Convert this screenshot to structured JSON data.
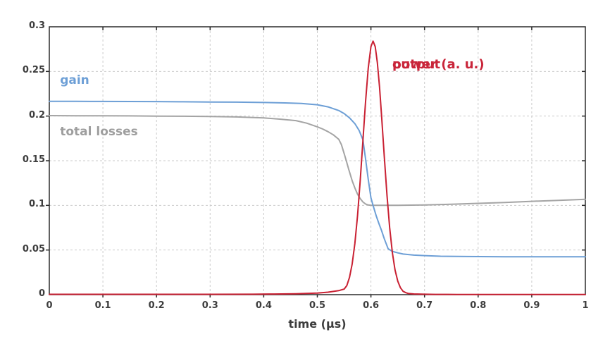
{
  "figure": {
    "background": "#ffffff",
    "axis_color": "#2b2b2b",
    "grid_color": "#cbcbcb",
    "tick_label_color": "#3d3d3d"
  },
  "chart_data": {
    "type": "line",
    "title": "",
    "xlabel": "time (µs)",
    "ylabel": "",
    "xlim": [
      0,
      1
    ],
    "ylim": [
      0,
      0.3
    ],
    "grid": {
      "style": "dashed",
      "color": "#cbcbcb"
    },
    "legend_position": "inline-annotations",
    "x_ticks": [
      0,
      0.1,
      0.2,
      0.3,
      0.4,
      0.5,
      0.6,
      0.7,
      0.8,
      0.9,
      1
    ],
    "x_tick_labels": [
      "0",
      "0.1",
      "0.2",
      "0.3",
      "0.4",
      "0.5",
      "0.6",
      "0.7",
      "0.8",
      "0.9",
      "1"
    ],
    "y_ticks": [
      0,
      0.05,
      0.1,
      0.15,
      0.2,
      0.25,
      0.3
    ],
    "y_tick_labels": [
      "0",
      "0.05",
      "0.1",
      "0.15",
      "0.2",
      "0.25",
      "0.3"
    ],
    "series": [
      {
        "id": "total-losses",
        "name": "total losses",
        "color": "#a4a4a4",
        "label": {
          "lines": [
            "total losses"
          ],
          "x": 0.02,
          "y": 0.1911,
          "color": "#9e9e9e",
          "size": 17,
          "line_height": 1.3
        },
        "points": [
          [
            0,
            0.2005
          ],
          [
            0.05,
            0.2004
          ],
          [
            0.1,
            0.2003
          ],
          [
            0.15,
            0.2002
          ],
          [
            0.2,
            0.2
          ],
          [
            0.25,
            0.1998
          ],
          [
            0.3,
            0.1995
          ],
          [
            0.35,
            0.199
          ],
          [
            0.4,
            0.1979
          ],
          [
            0.43,
            0.1966
          ],
          [
            0.46,
            0.1949
          ],
          [
            0.48,
            0.1921
          ],
          [
            0.5,
            0.188
          ],
          [
            0.51,
            0.1855
          ],
          [
            0.52,
            0.1825
          ],
          [
            0.53,
            0.179
          ],
          [
            0.54,
            0.174
          ],
          [
            0.545,
            0.168
          ],
          [
            0.55,
            0.158
          ],
          [
            0.554,
            0.15
          ],
          [
            0.5585,
            0.1405
          ],
          [
            0.565,
            0.1275
          ],
          [
            0.57,
            0.1195
          ],
          [
            0.575,
            0.1125
          ],
          [
            0.58,
            0.1075
          ],
          [
            0.585,
            0.1038
          ],
          [
            0.59,
            0.1015
          ],
          [
            0.595,
            0.1004
          ],
          [
            0.6,
            0.1
          ],
          [
            0.62,
            0.1
          ],
          [
            0.65,
            0.1
          ],
          [
            0.7,
            0.1005
          ],
          [
            0.75,
            0.1013
          ],
          [
            0.8,
            0.1022
          ],
          [
            0.85,
            0.1033
          ],
          [
            0.9,
            0.1045
          ],
          [
            0.95,
            0.1056
          ],
          [
            1,
            0.1067
          ]
        ]
      },
      {
        "id": "gain",
        "name": "gain",
        "color": "#6d9fd6",
        "label": {
          "lines": [
            "gain"
          ],
          "x": 0.02,
          "y": 0.2487,
          "color": "#6d9fd6",
          "size": 17,
          "line_height": 1.3
        },
        "points": [
          [
            0,
            0.2165
          ],
          [
            0.05,
            0.2165
          ],
          [
            0.1,
            0.2164
          ],
          [
            0.15,
            0.2163
          ],
          [
            0.2,
            0.2162
          ],
          [
            0.25,
            0.216
          ],
          [
            0.3,
            0.2158
          ],
          [
            0.35,
            0.2156
          ],
          [
            0.4,
            0.2152
          ],
          [
            0.44,
            0.2147
          ],
          [
            0.47,
            0.2141
          ],
          [
            0.5,
            0.2127
          ],
          [
            0.52,
            0.2103
          ],
          [
            0.54,
            0.2062
          ],
          [
            0.55,
            0.2028
          ],
          [
            0.56,
            0.198
          ],
          [
            0.57,
            0.1915
          ],
          [
            0.578,
            0.1838
          ],
          [
            0.585,
            0.1735
          ],
          [
            0.59,
            0.152
          ],
          [
            0.595,
            0.129
          ],
          [
            0.6,
            0.1085
          ],
          [
            0.604,
            0.1
          ],
          [
            0.61,
            0.088
          ],
          [
            0.615,
            0.0795
          ],
          [
            0.62,
            0.0715
          ],
          [
            0.625,
            0.0625
          ],
          [
            0.632,
            0.0515
          ],
          [
            0.64,
            0.0485
          ],
          [
            0.65,
            0.0468
          ],
          [
            0.66,
            0.0455
          ],
          [
            0.68,
            0.0443
          ],
          [
            0.7,
            0.0437
          ],
          [
            0.73,
            0.043
          ],
          [
            0.78,
            0.0427
          ],
          [
            0.85,
            0.0425
          ],
          [
            0.92,
            0.0425
          ],
          [
            1,
            0.0425
          ]
        ]
      },
      {
        "id": "output-power",
        "name": "output power (a. u.)",
        "color": "#c92133",
        "label": {
          "lines": [
            "output",
            "power (a. u.)"
          ],
          "x": 0.64,
          "y": 0.27,
          "color": "#c9253a",
          "size": 18,
          "line_height": 1.78
        },
        "points": [
          [
            0,
            0.0004
          ],
          [
            0.1,
            0.0004
          ],
          [
            0.2,
            0.0004
          ],
          [
            0.3,
            0.0004
          ],
          [
            0.38,
            0.0005
          ],
          [
            0.42,
            0.0007
          ],
          [
            0.46,
            0.001
          ],
          [
            0.5,
            0.0018
          ],
          [
            0.52,
            0.0028
          ],
          [
            0.54,
            0.0045
          ],
          [
            0.55,
            0.0062
          ],
          [
            0.555,
            0.0102
          ],
          [
            0.56,
            0.0194
          ],
          [
            0.565,
            0.0345
          ],
          [
            0.57,
            0.0573
          ],
          [
            0.575,
            0.0886
          ],
          [
            0.58,
            0.1279
          ],
          [
            0.585,
            0.1722
          ],
          [
            0.59,
            0.2164
          ],
          [
            0.595,
            0.2538
          ],
          [
            0.6,
            0.2778
          ],
          [
            0.604,
            0.284
          ],
          [
            0.608,
            0.2778
          ],
          [
            0.612,
            0.2599
          ],
          [
            0.616,
            0.2327
          ],
          [
            0.62,
            0.1992
          ],
          [
            0.625,
            0.1542
          ],
          [
            0.63,
            0.1114
          ],
          [
            0.635,
            0.075
          ],
          [
            0.64,
            0.0472
          ],
          [
            0.645,
            0.0277
          ],
          [
            0.65,
            0.0151
          ],
          [
            0.655,
            0.0077
          ],
          [
            0.66,
            0.0037
          ],
          [
            0.665,
            0.0022
          ],
          [
            0.67,
            0.0013
          ],
          [
            0.68,
            0.0008
          ],
          [
            0.7,
            0.0005
          ],
          [
            0.72,
            0.0003
          ],
          [
            0.76,
            0.0002
          ],
          [
            0.85,
            0.0002
          ],
          [
            1,
            0.0002
          ]
        ]
      }
    ]
  }
}
